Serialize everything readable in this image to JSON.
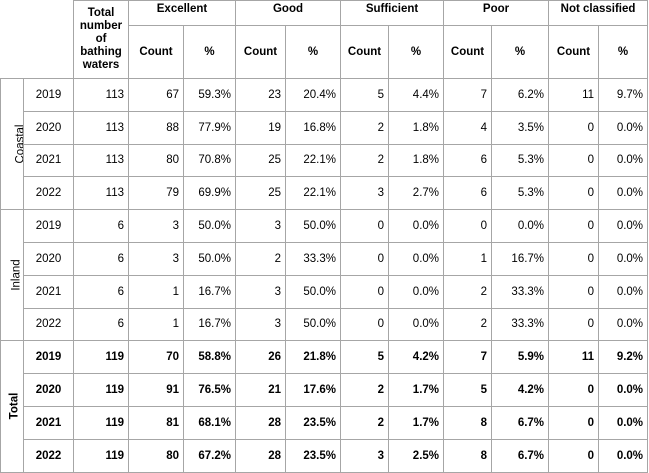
{
  "header": {
    "total": "Total number of bathing waters",
    "categories": [
      "Excellent",
      "Good",
      "Sufficient",
      "Poor",
      "Not classified"
    ],
    "count_label": "Count",
    "pct_label": "%"
  },
  "groups": [
    {
      "name": "Coastal",
      "rows": [
        {
          "year": "2019",
          "total": "113",
          "cells": [
            "67",
            "59.3%",
            "23",
            "20.4%",
            "5",
            "4.4%",
            "7",
            "6.2%",
            "11",
            "9.7%"
          ]
        },
        {
          "year": "2020",
          "total": "113",
          "cells": [
            "88",
            "77.9%",
            "19",
            "16.8%",
            "2",
            "1.8%",
            "4",
            "3.5%",
            "0",
            "0.0%"
          ]
        },
        {
          "year": "2021",
          "total": "113",
          "cells": [
            "80",
            "70.8%",
            "25",
            "22.1%",
            "2",
            "1.8%",
            "6",
            "5.3%",
            "0",
            "0.0%"
          ]
        },
        {
          "year": "2022",
          "total": "113",
          "cells": [
            "79",
            "69.9%",
            "25",
            "22.1%",
            "3",
            "2.7%",
            "6",
            "5.3%",
            "0",
            "0.0%"
          ]
        }
      ]
    },
    {
      "name": "Inland",
      "rows": [
        {
          "year": "2019",
          "total": "6",
          "cells": [
            "3",
            "50.0%",
            "3",
            "50.0%",
            "0",
            "0.0%",
            "0",
            "0.0%",
            "0",
            "0.0%"
          ]
        },
        {
          "year": "2020",
          "total": "6",
          "cells": [
            "3",
            "50.0%",
            "2",
            "33.3%",
            "0",
            "0.0%",
            "1",
            "16.7%",
            "0",
            "0.0%"
          ]
        },
        {
          "year": "2021",
          "total": "6",
          "cells": [
            "1",
            "16.7%",
            "3",
            "50.0%",
            "0",
            "0.0%",
            "2",
            "33.3%",
            "0",
            "0.0%"
          ]
        },
        {
          "year": "2022",
          "total": "6",
          "cells": [
            "1",
            "16.7%",
            "3",
            "50.0%",
            "0",
            "0.0%",
            "2",
            "33.3%",
            "0",
            "0.0%"
          ]
        }
      ]
    },
    {
      "name": "Total",
      "rows": [
        {
          "year": "2019",
          "total": "119",
          "cells": [
            "70",
            "58.8%",
            "26",
            "21.8%",
            "5",
            "4.2%",
            "7",
            "5.9%",
            "11",
            "9.2%"
          ]
        },
        {
          "year": "2020",
          "total": "119",
          "cells": [
            "91",
            "76.5%",
            "21",
            "17.6%",
            "2",
            "1.7%",
            "5",
            "4.2%",
            "0",
            "0.0%"
          ]
        },
        {
          "year": "2021",
          "total": "119",
          "cells": [
            "81",
            "68.1%",
            "28",
            "23.5%",
            "2",
            "1.7%",
            "8",
            "6.7%",
            "0",
            "0.0%"
          ]
        },
        {
          "year": "2022",
          "total": "119",
          "cells": [
            "80",
            "67.2%",
            "28",
            "23.5%",
            "3",
            "2.5%",
            "8",
            "6.7%",
            "0",
            "0.0%"
          ]
        }
      ]
    }
  ]
}
